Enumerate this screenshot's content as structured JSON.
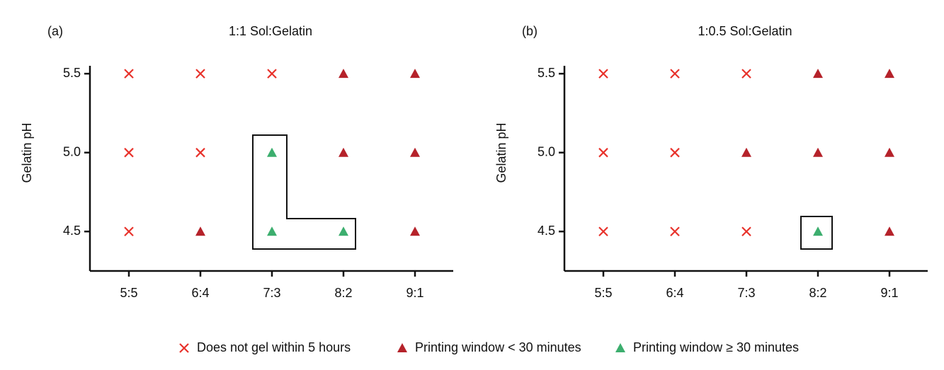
{
  "chart_data": [
    {
      "type": "scatter",
      "label": "(a)",
      "title": "1:1 Sol:Gelatin",
      "ylabel": "Gelatin pH",
      "categories": [
        "5:5",
        "6:4",
        "7:3",
        "8:2",
        "9:1"
      ],
      "ylim": [
        4.25,
        5.55
      ],
      "yticks": [
        4.5,
        {
          "value": 5,
          "label": "5.0"
        },
        5.5
      ],
      "series": [
        {
          "name": "Does not gel within 5 hours",
          "color": "#e8322b",
          "marker": "x",
          "x": [
            "5:5",
            "6:4",
            "7:3",
            "5:5",
            "6:4",
            "5:5"
          ],
          "values": [
            5.5,
            5.5,
            5.5,
            5,
            5,
            4.5
          ]
        },
        {
          "name": "Printing window < 30 minutes",
          "color": "#b5222a",
          "marker": "triangle",
          "x": [
            "8:2",
            "9:1",
            "8:2",
            "9:1",
            "6:4",
            "9:1"
          ],
          "values": [
            5.5,
            5.5,
            5,
            5,
            4.5,
            4.5
          ]
        },
        {
          "name": "Printing window ≥ 30 minutes",
          "color": "#3cae6e",
          "marker": "triangle",
          "x": [
            "7:3",
            "7:3",
            "8:2"
          ],
          "values": [
            5,
            4.5,
            4.5
          ]
        }
      ]
    },
    {
      "type": "scatter",
      "label": "(b)",
      "title": "1:0.5 Sol:Gelatin",
      "ylabel": "Gelatin pH",
      "categories": [
        "5:5",
        "6:4",
        "7:3",
        "8:2",
        "9:1"
      ],
      "ylim": [
        4.25,
        5.55
      ],
      "yticks": [
        4.5,
        {
          "value": 5,
          "label": "5.0"
        },
        5.5
      ],
      "series": [
        {
          "name": "Does not gel within 5 hours",
          "color": "#e8322b",
          "marker": "x",
          "x": [
            "5:5",
            "6:4",
            "7:3",
            "5:5",
            "6:4",
            "5:5",
            "6:4",
            "7:3"
          ],
          "values": [
            5.5,
            5.5,
            5.5,
            5,
            5,
            4.5,
            4.5,
            4.5
          ]
        },
        {
          "name": "Printing window < 30 minutes",
          "color": "#b5222a",
          "marker": "triangle",
          "x": [
            "8:2",
            "9:1",
            "7:3",
            "8:2",
            "9:1",
            "9:1"
          ],
          "values": [
            5.5,
            5.5,
            5,
            5,
            5,
            4.5
          ]
        },
        {
          "name": "Printing window ≥ 30 minutes",
          "color": "#3cae6e",
          "marker": "triangle",
          "x": [
            "8:2"
          ],
          "values": [
            4.5
          ]
        }
      ]
    }
  ]
}
